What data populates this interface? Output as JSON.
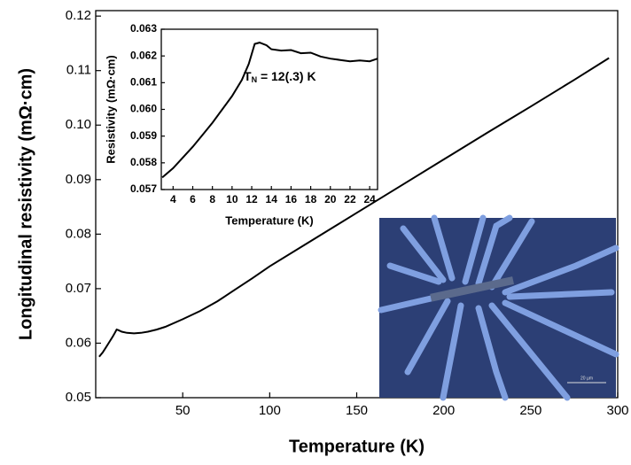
{
  "chart_data": [
    {
      "type": "line",
      "xlabel": "Temperature (K)",
      "ylabel": "Longitudinal resistivity (mΩ·cm)",
      "xlim": [
        0,
        300
      ],
      "ylim": [
        0.05,
        0.121
      ],
      "xticks": [
        50,
        100,
        150,
        200,
        250,
        300
      ],
      "yticks": [
        0.05,
        0.06,
        0.07,
        0.08,
        0.09,
        {
          "value": 0.1,
          "label": "0.10"
        },
        0.11,
        0.12
      ],
      "color": "#000000",
      "x": [
        2,
        4,
        6,
        8,
        10,
        11,
        12,
        13,
        15,
        18,
        22,
        26,
        30,
        35,
        40,
        50,
        60,
        70,
        80,
        90,
        100,
        125,
        150,
        175,
        200,
        225,
        250,
        275,
        295
      ],
      "values": [
        0.0575,
        0.0583,
        0.0593,
        0.0603,
        0.0613,
        0.0619,
        0.0625,
        0.0624,
        0.0621,
        0.0619,
        0.0618,
        0.0619,
        0.0621,
        0.0625,
        0.063,
        0.0644,
        0.0659,
        0.0677,
        0.0698,
        0.0719,
        0.0741,
        0.079,
        0.0839,
        0.0888,
        0.0937,
        0.0986,
        0.1034,
        0.1083,
        0.1123
      ]
    },
    {
      "type": "line",
      "xlabel": "Temperature (K)",
      "ylabel": "Resistivity (mΩ·cm)",
      "annotation": [
        "T",
        "N",
        " = 12(.3) K"
      ],
      "xlim": [
        2.8,
        24.8
      ],
      "ylim": [
        0.057,
        0.063
      ],
      "xticks": [
        4,
        6,
        8,
        10,
        12,
        14,
        16,
        18,
        20,
        22,
        24
      ],
      "yticks": [
        0.057,
        0.058,
        0.059,
        {
          "value": 0.06,
          "label": "0.060"
        },
        0.061,
        0.062,
        0.063
      ],
      "color": "#000000",
      "x": [
        2.9,
        4,
        5,
        6,
        7,
        8,
        9,
        10,
        11,
        11.7,
        12.3,
        12.8,
        13.5,
        14,
        15,
        16,
        17,
        18,
        19,
        20,
        21,
        22,
        23,
        24,
        24.8
      ],
      "values": [
        0.05745,
        0.0578,
        0.0582,
        0.0586,
        0.05905,
        0.0595,
        0.06,
        0.0605,
        0.0611,
        0.0617,
        0.06245,
        0.0625,
        0.0624,
        0.06225,
        0.0622,
        0.06222,
        0.0621,
        0.06212,
        0.06198,
        0.0619,
        0.06185,
        0.0618,
        0.06183,
        0.0618,
        0.0619
      ]
    }
  ],
  "inset_image": {
    "scale_label": "20 µm"
  }
}
